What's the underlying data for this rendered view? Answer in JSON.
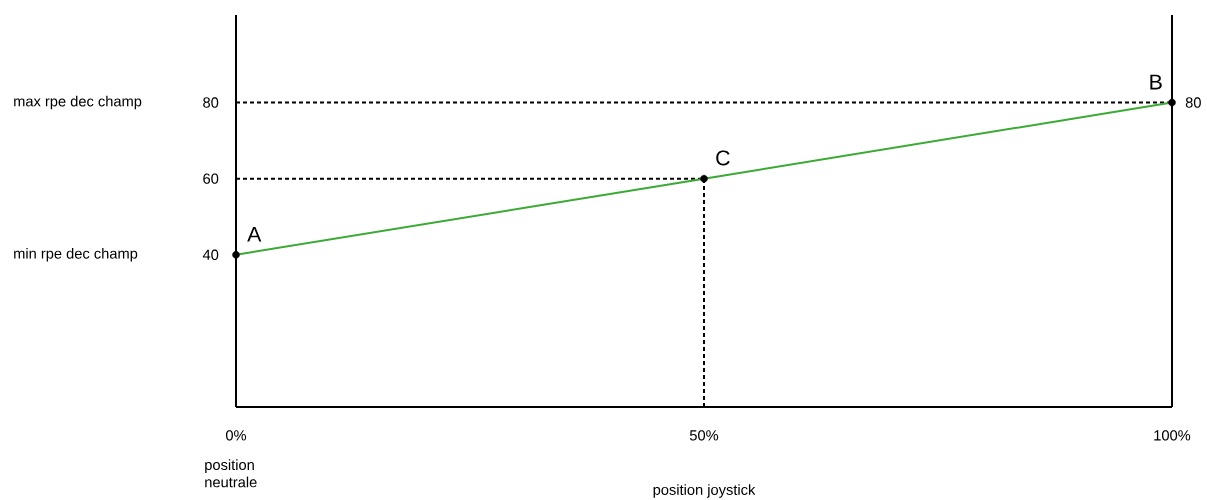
{
  "chart_data": {
    "type": "line",
    "xlabel": "position joystick",
    "xlim": [
      0,
      100
    ],
    "ylim": [
      0,
      103
    ],
    "xticks": [
      {
        "value": 0,
        "label": "0%"
      },
      {
        "value": 50,
        "label": "50%"
      },
      {
        "value": 100,
        "label": "100%"
      }
    ],
    "yticks": [
      40,
      60,
      80
    ],
    "series": [
      {
        "type": "line",
        "color": "#000000",
        "line_style": "dashed",
        "marker": "none",
        "x": [
          0,
          100
        ],
        "values": [
          80,
          80
        ]
      },
      {
        "type": "line",
        "color": "#000000",
        "line_style": "dashed",
        "marker": "none",
        "x": [
          0,
          50
        ],
        "values": [
          60,
          60
        ]
      },
      {
        "type": "line",
        "color": "#000000",
        "line_style": "dashed",
        "marker": "none",
        "x": [
          50,
          50
        ],
        "values": [
          0,
          60
        ]
      },
      {
        "color": "#3aaa35",
        "line_style": "solid",
        "marker": "none",
        "x": [
          0,
          50,
          100
        ],
        "values": [
          40,
          60,
          80
        ]
      },
      {
        "type": "scatter",
        "color": "#000000",
        "marker": "circle",
        "x": [
          0,
          50,
          100
        ],
        "values": [
          40,
          60,
          80
        ]
      }
    ],
    "annotations": [
      {
        "text": "A",
        "x": 0,
        "y": 40
      },
      {
        "text": "C",
        "x": 50,
        "y": 60
      },
      {
        "text": "B",
        "x": 100,
        "y": 80
      },
      {
        "text": "80",
        "x": 100,
        "y": 80
      },
      "min rpe dec champ",
      "max rpe dec champ",
      "position neutrale"
    ]
  }
}
